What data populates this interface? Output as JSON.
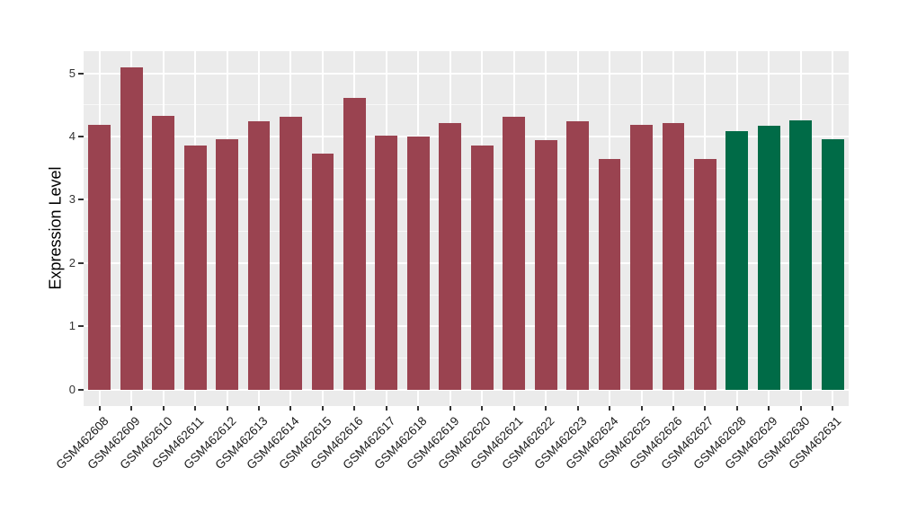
{
  "chart_data": {
    "type": "bar",
    "title": "",
    "xlabel": "",
    "ylabel": "Expression Level",
    "categories": [
      "GSM462608",
      "GSM462609",
      "GSM462610",
      "GSM462611",
      "GSM462612",
      "GSM462613",
      "GSM462614",
      "GSM462615",
      "GSM462616",
      "GSM462617",
      "GSM462618",
      "GSM462619",
      "GSM462620",
      "GSM462621",
      "GSM462622",
      "GSM462623",
      "GSM462624",
      "GSM462625",
      "GSM462626",
      "GSM462627",
      "GSM462628",
      "GSM462629",
      "GSM462630",
      "GSM462631"
    ],
    "values": [
      4.19,
      5.1,
      4.33,
      3.86,
      3.96,
      4.24,
      4.32,
      3.73,
      4.61,
      4.01,
      4.0,
      4.21,
      3.86,
      4.32,
      3.95,
      4.24,
      3.64,
      4.19,
      4.22,
      3.65,
      4.08,
      4.17,
      4.25,
      3.96
    ],
    "group_index": [
      0,
      0,
      0,
      0,
      0,
      0,
      0,
      0,
      0,
      0,
      0,
      0,
      0,
      0,
      0,
      0,
      0,
      0,
      0,
      0,
      1,
      1,
      1,
      1
    ],
    "palette": [
      "#9A4350",
      "#006B47"
    ],
    "yticks": [
      0,
      1,
      2,
      3,
      4,
      5
    ],
    "yticks_minor": [
      0.5,
      1.5,
      2.5,
      3.5,
      4.5
    ],
    "ylim": [
      -0.26,
      5.35
    ],
    "bar_width_fraction": 0.7,
    "grid": true,
    "legend": "none",
    "panel_background": "#EBEBEB",
    "gridline_color": "#FFFFFF",
    "tick_color": "#333333",
    "text_color": "#1A1A1A"
  }
}
